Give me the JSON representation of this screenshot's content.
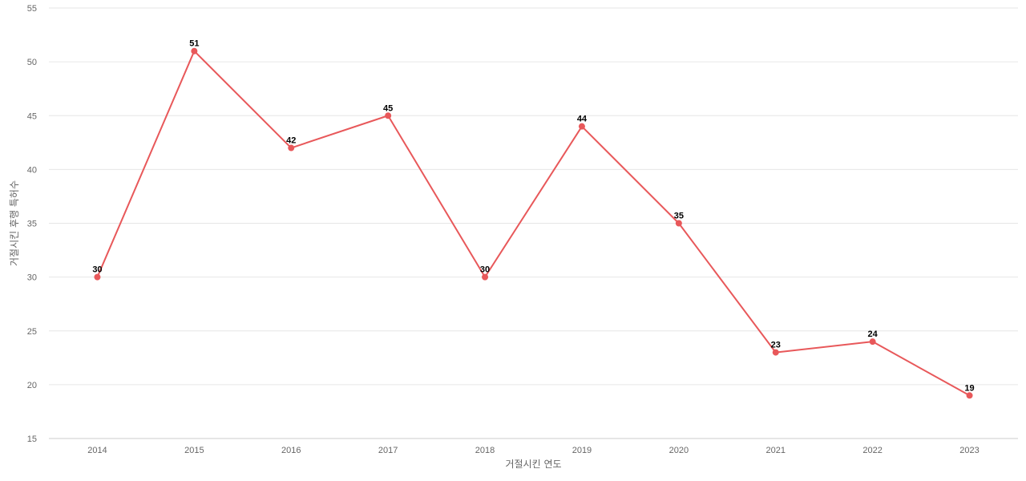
{
  "chart_data": {
    "type": "line",
    "title": "",
    "xlabel": "거절시킨 연도",
    "ylabel": "거절시킨 후행 특허수",
    "categories": [
      "2014",
      "2015",
      "2016",
      "2017",
      "2018",
      "2019",
      "2020",
      "2021",
      "2022",
      "2023"
    ],
    "series": [
      {
        "values": [
          30,
          51,
          42,
          45,
          30,
          44,
          35,
          23,
          24,
          19
        ]
      }
    ],
    "ylim": [
      15,
      55
    ],
    "yticks": [
      15,
      20,
      25,
      30,
      35,
      40,
      45,
      50,
      55
    ],
    "grid": true,
    "legend": "none",
    "line_color": "#e8585a"
  }
}
